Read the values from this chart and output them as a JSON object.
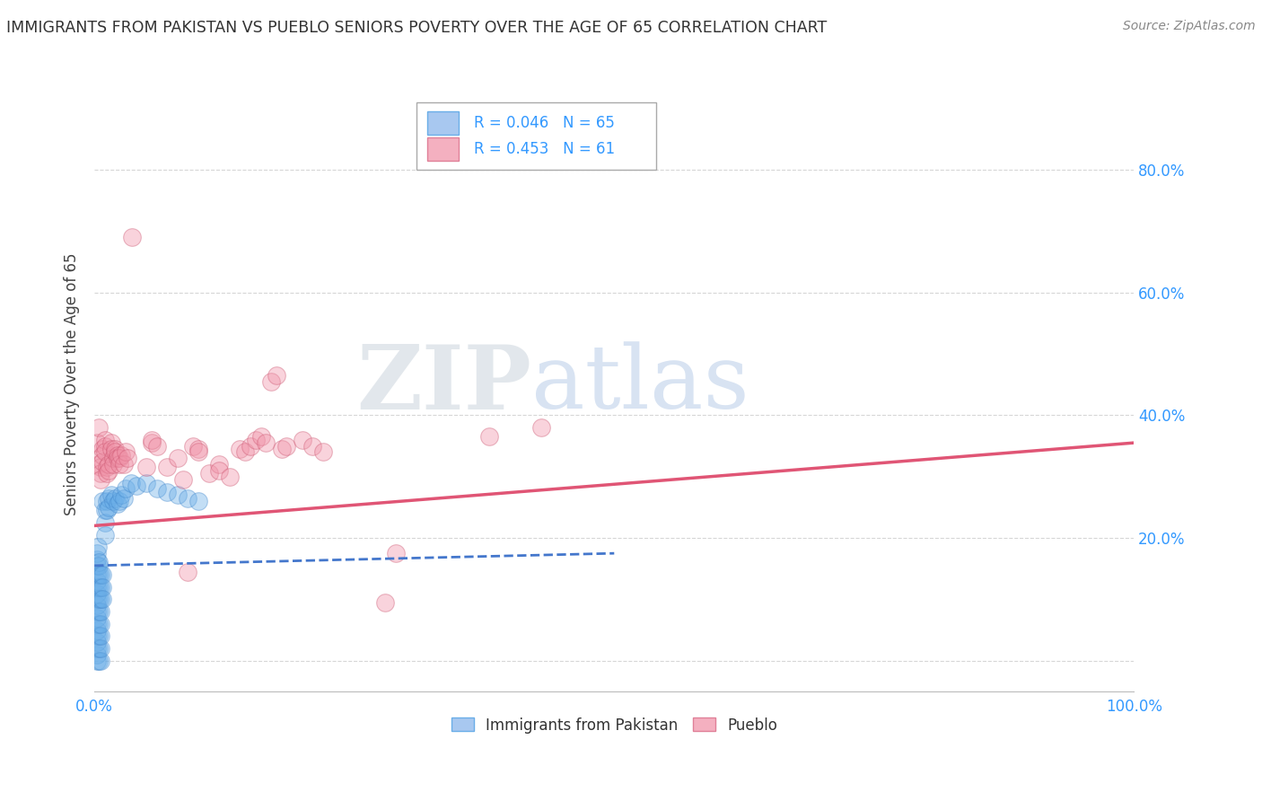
{
  "title": "IMMIGRANTS FROM PAKISTAN VS PUEBLO SENIORS POVERTY OVER THE AGE OF 65 CORRELATION CHART",
  "source": "Source: ZipAtlas.com",
  "ylabel": "Seniors Poverty Over the Age of 65",
  "blue_scatter": [
    [
      0.002,
      0.0
    ],
    [
      0.002,
      0.01
    ],
    [
      0.002,
      0.02
    ],
    [
      0.002,
      0.03
    ],
    [
      0.002,
      0.04
    ],
    [
      0.002,
      0.05
    ],
    [
      0.002,
      0.06
    ],
    [
      0.002,
      0.07
    ],
    [
      0.002,
      0.08
    ],
    [
      0.002,
      0.09
    ],
    [
      0.002,
      0.1
    ],
    [
      0.002,
      0.11
    ],
    [
      0.002,
      0.12
    ],
    [
      0.002,
      0.13
    ],
    [
      0.002,
      0.14
    ],
    [
      0.002,
      0.155
    ],
    [
      0.002,
      0.165
    ],
    [
      0.002,
      0.175
    ],
    [
      0.003,
      0.185
    ],
    [
      0.004,
      0.0
    ],
    [
      0.004,
      0.02
    ],
    [
      0.004,
      0.04
    ],
    [
      0.004,
      0.06
    ],
    [
      0.004,
      0.08
    ],
    [
      0.004,
      0.1
    ],
    [
      0.004,
      0.12
    ],
    [
      0.004,
      0.14
    ],
    [
      0.004,
      0.155
    ],
    [
      0.004,
      0.16
    ],
    [
      0.006,
      0.0
    ],
    [
      0.006,
      0.02
    ],
    [
      0.006,
      0.04
    ],
    [
      0.006,
      0.06
    ],
    [
      0.006,
      0.08
    ],
    [
      0.006,
      0.1
    ],
    [
      0.006,
      0.12
    ],
    [
      0.006,
      0.14
    ],
    [
      0.008,
      0.26
    ],
    [
      0.008,
      0.14
    ],
    [
      0.008,
      0.12
    ],
    [
      0.008,
      0.1
    ],
    [
      0.01,
      0.245
    ],
    [
      0.01,
      0.225
    ],
    [
      0.01,
      0.205
    ],
    [
      0.012,
      0.26
    ],
    [
      0.012,
      0.245
    ],
    [
      0.014,
      0.265
    ],
    [
      0.014,
      0.25
    ],
    [
      0.016,
      0.27
    ],
    [
      0.018,
      0.26
    ],
    [
      0.02,
      0.265
    ],
    [
      0.022,
      0.255
    ],
    [
      0.024,
      0.26
    ],
    [
      0.026,
      0.27
    ],
    [
      0.028,
      0.265
    ],
    [
      0.03,
      0.28
    ],
    [
      0.035,
      0.29
    ],
    [
      0.04,
      0.285
    ],
    [
      0.05,
      0.29
    ],
    [
      0.06,
      0.28
    ],
    [
      0.07,
      0.275
    ],
    [
      0.08,
      0.27
    ],
    [
      0.09,
      0.265
    ],
    [
      0.1,
      0.26
    ]
  ],
  "pink_scatter": [
    [
      0.002,
      0.355
    ],
    [
      0.004,
      0.38
    ],
    [
      0.004,
      0.32
    ],
    [
      0.006,
      0.315
    ],
    [
      0.006,
      0.305
    ],
    [
      0.006,
      0.295
    ],
    [
      0.008,
      0.345
    ],
    [
      0.008,
      0.335
    ],
    [
      0.008,
      0.325
    ],
    [
      0.01,
      0.36
    ],
    [
      0.01,
      0.35
    ],
    [
      0.01,
      0.34
    ],
    [
      0.012,
      0.315
    ],
    [
      0.012,
      0.305
    ],
    [
      0.014,
      0.32
    ],
    [
      0.014,
      0.31
    ],
    [
      0.016,
      0.355
    ],
    [
      0.016,
      0.345
    ],
    [
      0.018,
      0.33
    ],
    [
      0.018,
      0.32
    ],
    [
      0.02,
      0.345
    ],
    [
      0.02,
      0.34
    ],
    [
      0.022,
      0.335
    ],
    [
      0.022,
      0.33
    ],
    [
      0.024,
      0.33
    ],
    [
      0.024,
      0.32
    ],
    [
      0.026,
      0.335
    ],
    [
      0.028,
      0.32
    ],
    [
      0.03,
      0.34
    ],
    [
      0.032,
      0.33
    ],
    [
      0.036,
      0.69
    ],
    [
      0.05,
      0.315
    ],
    [
      0.055,
      0.355
    ],
    [
      0.055,
      0.36
    ],
    [
      0.06,
      0.35
    ],
    [
      0.07,
      0.315
    ],
    [
      0.08,
      0.33
    ],
    [
      0.085,
      0.295
    ],
    [
      0.09,
      0.145
    ],
    [
      0.095,
      0.35
    ],
    [
      0.1,
      0.345
    ],
    [
      0.1,
      0.34
    ],
    [
      0.11,
      0.305
    ],
    [
      0.12,
      0.32
    ],
    [
      0.12,
      0.31
    ],
    [
      0.13,
      0.3
    ],
    [
      0.14,
      0.345
    ],
    [
      0.145,
      0.34
    ],
    [
      0.15,
      0.35
    ],
    [
      0.155,
      0.36
    ],
    [
      0.16,
      0.365
    ],
    [
      0.165,
      0.355
    ],
    [
      0.17,
      0.455
    ],
    [
      0.175,
      0.465
    ],
    [
      0.18,
      0.345
    ],
    [
      0.185,
      0.35
    ],
    [
      0.2,
      0.36
    ],
    [
      0.21,
      0.35
    ],
    [
      0.22,
      0.34
    ],
    [
      0.28,
      0.095
    ],
    [
      0.29,
      0.175
    ],
    [
      0.38,
      0.365
    ],
    [
      0.43,
      0.38
    ]
  ],
  "blue_line_x": [
    0.0,
    0.5
  ],
  "blue_line_y": [
    0.155,
    0.175
  ],
  "pink_line_x": [
    0.0,
    1.0
  ],
  "pink_line_y": [
    0.22,
    0.355
  ],
  "xlim": [
    0.0,
    1.0
  ],
  "ylim": [
    -0.05,
    0.95
  ],
  "ytick_vals": [
    0.0,
    0.2,
    0.4,
    0.6,
    0.8
  ],
  "ytick_labels": [
    "",
    "20.0%",
    "40.0%",
    "60.0%",
    "80.0%"
  ],
  "xtick_vals": [
    0.0,
    0.1,
    0.2,
    0.3,
    0.4,
    0.5,
    0.6,
    0.7,
    0.8,
    0.9,
    1.0
  ],
  "xtick_labels": [
    "0.0%",
    "",
    "",
    "",
    "",
    "",
    "",
    "",
    "",
    "",
    "100.0%"
  ],
  "watermark_zip": "ZIP",
  "watermark_atlas": "atlas",
  "background_color": "#ffffff",
  "blue_color": "#6aaee8",
  "pink_color": "#f093a8",
  "blue_line_color": "#4477cc",
  "pink_line_color": "#e05575",
  "grid_color": "#cccccc",
  "tick_label_color": "#3399ff",
  "title_color": "#333333",
  "source_color": "#888888",
  "ylabel_color": "#444444"
}
